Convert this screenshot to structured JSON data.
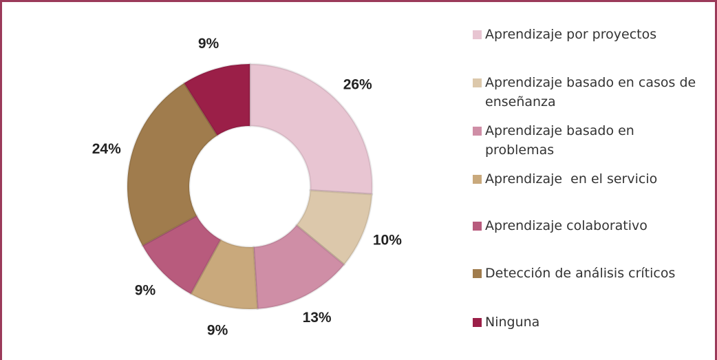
{
  "chart_data": {
    "type": "donut",
    "categories": [
      "Aprendizaje por proyectos",
      "Aprendizaje basado en casos de enseñanza",
      "Aprendizaje basado en problemas",
      "Aprendizaje  en el servicio",
      "Aprendizaje colaborativo",
      "Detección de análisis críticos",
      "Ninguna"
    ],
    "values": [
      26,
      10,
      13,
      9,
      9,
      24,
      9
    ],
    "value_labels": [
      "26%",
      "10%",
      "13%",
      "9%",
      "9%",
      "24%",
      "9%"
    ],
    "colors": [
      "#e8c5d2",
      "#dcc8ab",
      "#cf8ea6",
      "#c9a97c",
      "#b85b7d",
      "#a07c4d",
      "#9b1f48"
    ],
    "legend": "right"
  }
}
